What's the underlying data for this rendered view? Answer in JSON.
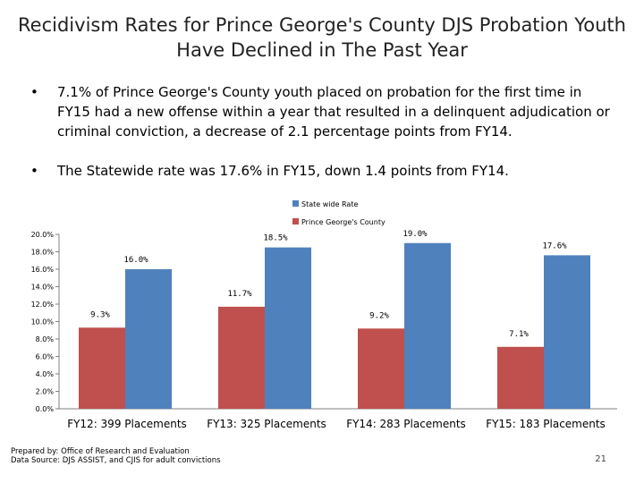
{
  "title_line1": "Recidivism Rates for Prince George's County DJS Probation Youth",
  "title_line2": "Have Declined in The Past Year",
  "bullets": [
    "7.1% of Prince George's County youth placed on probation for the first time in FY15 had a new offense within a year that resulted in a delinquent adjudication or criminal conviction, a decrease of 2.1 percentage points from FY14.",
    "The Statewide rate was 17.6% in FY15, down 1.4 points from FY14."
  ],
  "bullet_char": "•",
  "chart_data": {
    "type": "bar",
    "categories": [
      "FY12: 399 Placements",
      "FY13: 325 Placements",
      "FY14: 283 Placements",
      "FY15: 183 Placements"
    ],
    "series": [
      {
        "name": "Prince George's County",
        "color": "#c0504d",
        "values": [
          9.3,
          11.7,
          9.2,
          7.1
        ],
        "labels": [
          "9.3%",
          "11.7%",
          "9.2%",
          "7.1%"
        ]
      },
      {
        "name": "State wide Rate",
        "color": "#4f81bd",
        "values": [
          16.0,
          18.5,
          19.0,
          17.6
        ],
        "labels": [
          "16.0%",
          "18.5%",
          "19.0%",
          "17.6%"
        ]
      }
    ],
    "legend": [
      "State wide Rate",
      "Prince George's County"
    ],
    "ylim": [
      0,
      20
    ],
    "yticks": [
      "0.0%",
      "2.0%",
      "4.0%",
      "6.0%",
      "8.0%",
      "10.0%",
      "12.0%",
      "14.0%",
      "16.0%",
      "18.0%",
      "20.0%"
    ],
    "grid": false
  },
  "footer": {
    "line1": "Prepared by: Office of Research and Evaluation",
    "line2": "Data Source: DJS ASSIST, and CJIS for adult convictions"
  },
  "page_number": "21"
}
